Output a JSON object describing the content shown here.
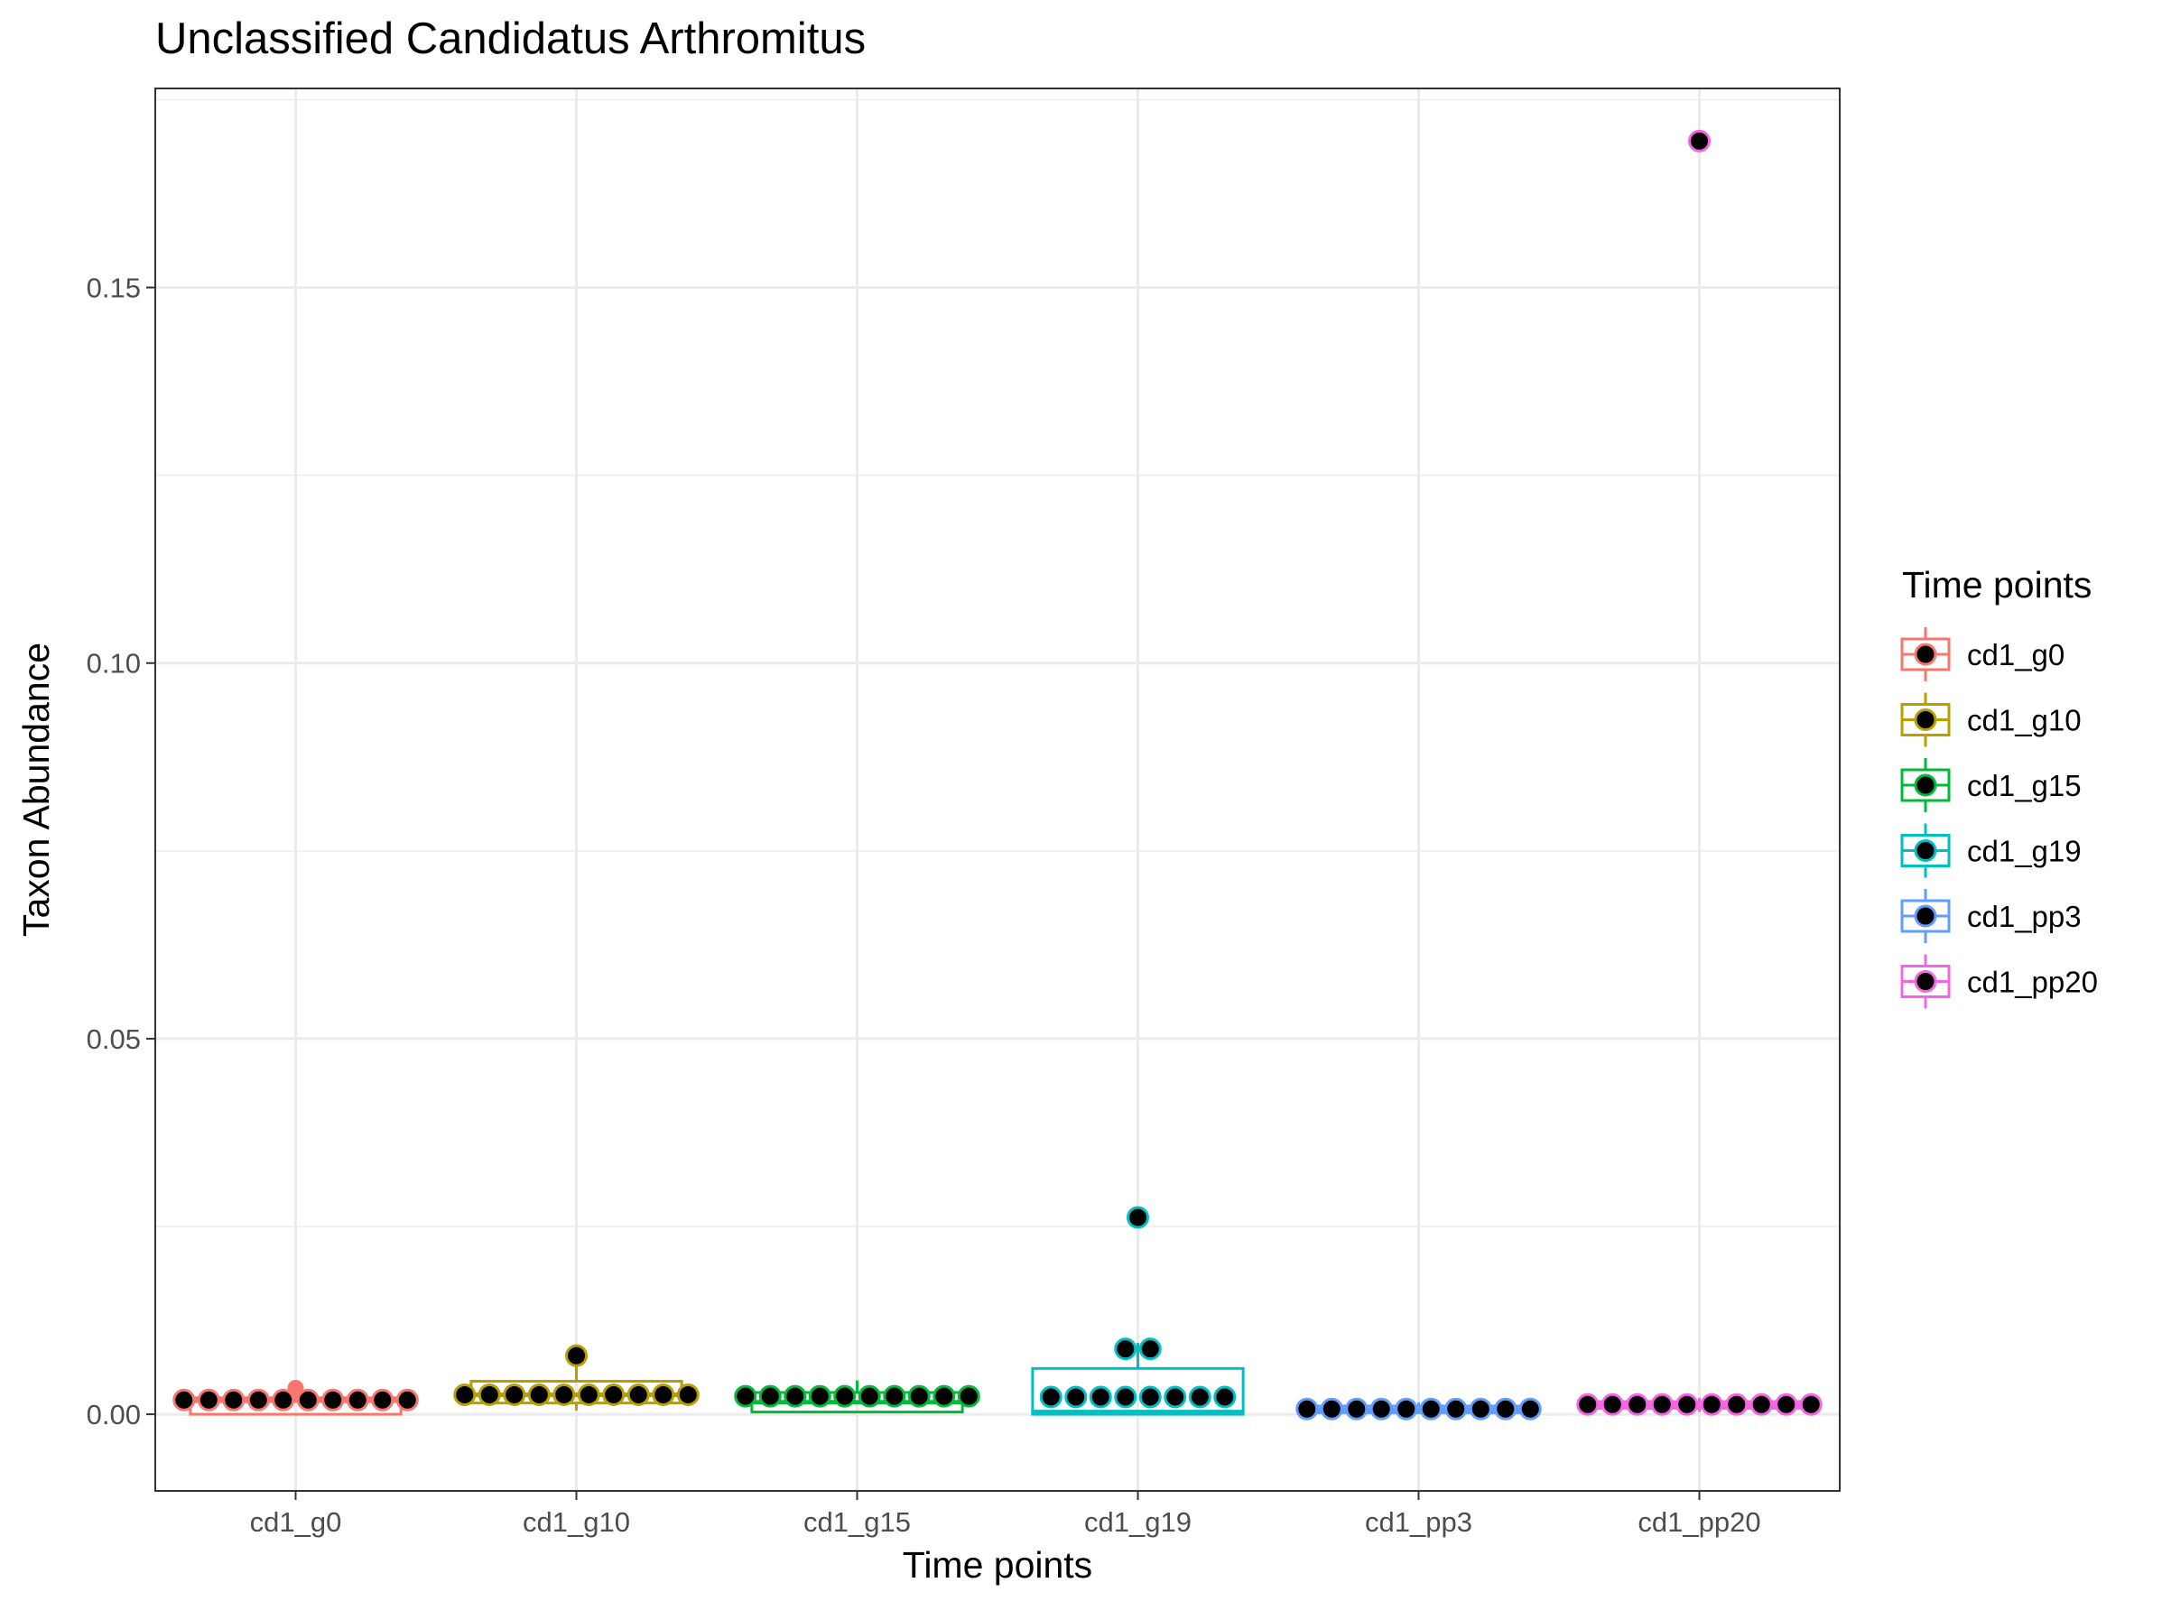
{
  "chart_data": {
    "type": "box",
    "title": "Unclassified  Candidatus Arthromitus",
    "xlabel": "Time points",
    "ylabel": "Taxon Abundance",
    "ylim": [
      -0.0102,
      0.1765
    ],
    "yticks": [
      0.0,
      0.05,
      0.1,
      0.15
    ],
    "ytick_labels": [
      "0.00",
      "0.05",
      "0.10",
      "0.15"
    ],
    "categories": [
      "cd1_g0",
      "cd1_g10",
      "cd1_g15",
      "cd1_g19",
      "cd1_pp3",
      "cd1_pp20"
    ],
    "grid": true,
    "legend": {
      "title": "Time points",
      "position": "right",
      "entries": [
        "cd1_g0",
        "cd1_g10",
        "cd1_g15",
        "cd1_g19",
        "cd1_pp3",
        "cd1_pp20"
      ]
    },
    "colors": [
      "#F8766D",
      "#B79F00",
      "#00BA38",
      "#00BFC4",
      "#619CFF",
      "#F564E3"
    ],
    "series": [
      {
        "name": "cd1_g0",
        "box": {
          "lower_whisker": 0.0,
          "q1": 0.0,
          "median": 0.0018,
          "q3": 0.0022,
          "upper_whisker": 0.0035
        },
        "outliers": [
          0.0035
        ],
        "points": [
          0.0019,
          0.0019,
          0.0019,
          0.0019,
          0.0019,
          0.0019,
          0.0019,
          0.0019,
          0.0019,
          0.0019
        ]
      },
      {
        "name": "cd1_g10",
        "box": {
          "lower_whisker": 0.0005,
          "q1": 0.0015,
          "median": 0.0026,
          "q3": 0.0044,
          "upper_whisker": 0.0078
        },
        "outliers": [],
        "points": [
          0.0026,
          0.0026,
          0.0026,
          0.0026,
          0.0026,
          0.0026,
          0.0026,
          0.0026,
          0.0026,
          0.0026,
          0.0078
        ]
      },
      {
        "name": "cd1_g15",
        "box": {
          "lower_whisker": 0.0003,
          "q1": 0.0003,
          "median": 0.0016,
          "q3": 0.0029,
          "upper_whisker": 0.0045
        },
        "outliers": [],
        "points": [
          0.0024,
          0.0024,
          0.0024,
          0.0024,
          0.0024,
          0.0024,
          0.0024,
          0.0024,
          0.0024,
          0.0024
        ]
      },
      {
        "name": "cd1_g19",
        "box": {
          "lower_whisker": 0.0,
          "q1": 0.0,
          "median": 0.0003,
          "q3": 0.0061,
          "upper_whisker": 0.0095
        },
        "outliers": [
          0.0262
        ],
        "points": [
          0.0023,
          0.0023,
          0.0023,
          0.0023,
          0.0023,
          0.0023,
          0.0023,
          0.0023,
          0.0087,
          0.0087,
          0.0262
        ]
      },
      {
        "name": "cd1_pp3",
        "box": {
          "lower_whisker": 0.0001,
          "q1": 0.0002,
          "median": 0.0006,
          "q3": 0.0011,
          "upper_whisker": 0.0016
        },
        "outliers": [],
        "points": [
          0.0007,
          0.0007,
          0.0007,
          0.0007,
          0.0007,
          0.0007,
          0.0007,
          0.0007,
          0.0007,
          0.0007
        ]
      },
      {
        "name": "cd1_pp20",
        "box": {
          "lower_whisker": 0.0003,
          "q1": 0.0008,
          "median": 0.0012,
          "q3": 0.0017,
          "upper_whisker": 0.0022
        },
        "outliers": [
          0.1695
        ],
        "points": [
          0.0013,
          0.0013,
          0.0013,
          0.0013,
          0.0013,
          0.0013,
          0.0013,
          0.0013,
          0.0013,
          0.0013,
          0.1695
        ]
      }
    ]
  }
}
